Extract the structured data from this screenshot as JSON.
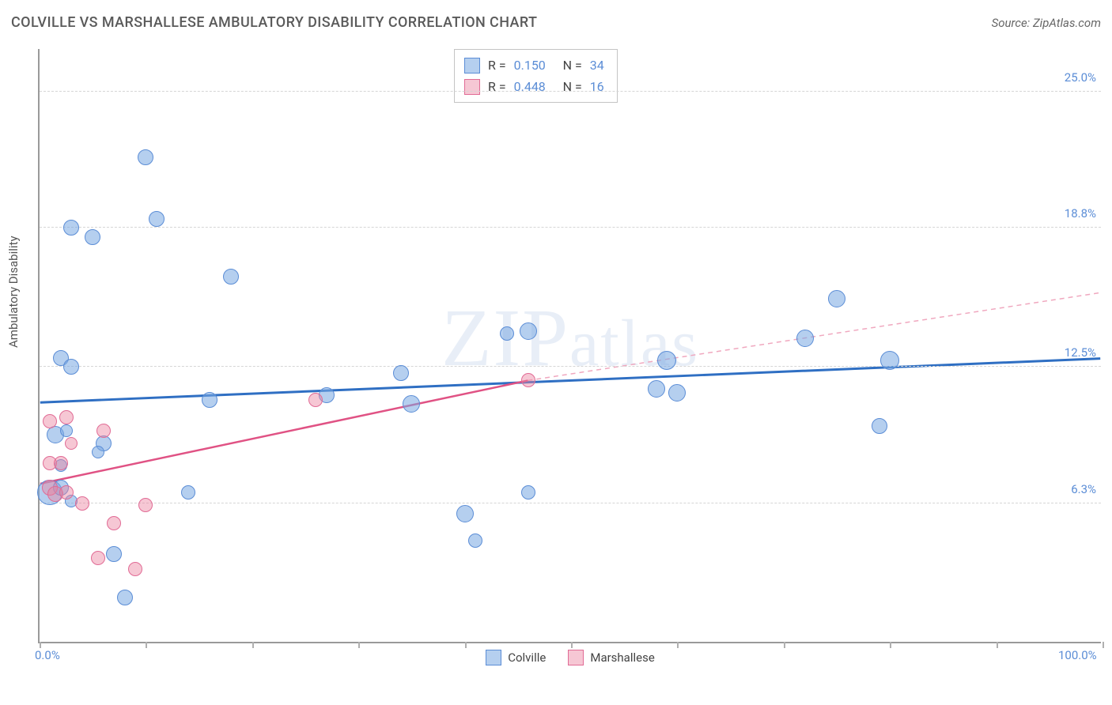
{
  "title": "COLVILLE VS MARSHALLESE AMBULATORY DISABILITY CORRELATION CHART",
  "source": "Source: ZipAtlas.com",
  "chart": {
    "type": "scatter",
    "ylabel": "Ambulatory Disability",
    "xlim": [
      0,
      100
    ],
    "ylim": [
      0,
      27
    ],
    "xticks": [
      0,
      10,
      20,
      30,
      40,
      50,
      60,
      70,
      80,
      90,
      100
    ],
    "xtick_labels": {
      "0": "0.0%",
      "100": "100.0%"
    },
    "yticks": [
      6.3,
      12.5,
      18.8,
      25.0
    ],
    "ytick_labels": [
      "6.3%",
      "12.5%",
      "18.8%",
      "25.0%"
    ],
    "background_color": "#ffffff",
    "grid_color": "#d5d5d5",
    "axis_color": "#9a9a9a",
    "watermark": "ZIPatlas",
    "series": [
      {
        "name": "Colville",
        "color_fill": "#79a8e1",
        "color_stroke": "#5b8dd6",
        "fill_opacity": 0.55,
        "marker": "circle",
        "R": "0.150",
        "N": "34",
        "trend": {
          "x1": 0,
          "y1": 10.9,
          "x2": 100,
          "y2": 12.9,
          "style": "solid",
          "color": "#2f6fc3",
          "width": 3
        },
        "points": [
          {
            "x": 3,
            "y": 18.8,
            "r": 10
          },
          {
            "x": 5,
            "y": 18.4,
            "r": 10
          },
          {
            "x": 11,
            "y": 19.2,
            "r": 10
          },
          {
            "x": 10,
            "y": 22.0,
            "r": 10
          },
          {
            "x": 18,
            "y": 16.6,
            "r": 10
          },
          {
            "x": 2,
            "y": 12.9,
            "r": 10
          },
          {
            "x": 3,
            "y": 12.5,
            "r": 10
          },
          {
            "x": 16,
            "y": 11.0,
            "r": 10
          },
          {
            "x": 6,
            "y": 9.0,
            "r": 10
          },
          {
            "x": 1.5,
            "y": 9.4,
            "r": 11
          },
          {
            "x": 2.5,
            "y": 9.6,
            "r": 8
          },
          {
            "x": 1,
            "y": 6.8,
            "r": 16
          },
          {
            "x": 2,
            "y": 7.0,
            "r": 10
          },
          {
            "x": 14,
            "y": 6.8,
            "r": 9
          },
          {
            "x": 7,
            "y": 4.0,
            "r": 10
          },
          {
            "x": 8,
            "y": 2.0,
            "r": 10
          },
          {
            "x": 34,
            "y": 12.2,
            "r": 10
          },
          {
            "x": 35,
            "y": 10.8,
            "r": 11
          },
          {
            "x": 40,
            "y": 5.8,
            "r": 11
          },
          {
            "x": 41,
            "y": 4.6,
            "r": 9
          },
          {
            "x": 44,
            "y": 14.0,
            "r": 9
          },
          {
            "x": 46,
            "y": 14.1,
            "r": 11
          },
          {
            "x": 46,
            "y": 6.8,
            "r": 9
          },
          {
            "x": 58,
            "y": 11.5,
            "r": 11
          },
          {
            "x": 60,
            "y": 11.3,
            "r": 11
          },
          {
            "x": 59,
            "y": 12.8,
            "r": 12
          },
          {
            "x": 72,
            "y": 13.8,
            "r": 11
          },
          {
            "x": 75,
            "y": 15.6,
            "r": 11
          },
          {
            "x": 80,
            "y": 12.8,
            "r": 12
          },
          {
            "x": 79,
            "y": 9.8,
            "r": 10
          },
          {
            "x": 27,
            "y": 11.2,
            "r": 10
          },
          {
            "x": 2,
            "y": 8.0,
            "r": 8
          },
          {
            "x": 3,
            "y": 6.4,
            "r": 8
          },
          {
            "x": 5.5,
            "y": 8.6,
            "r": 8
          }
        ]
      },
      {
        "name": "Marshallese",
        "color_fill": "#eb82a0",
        "color_stroke": "#e16b95",
        "fill_opacity": 0.45,
        "marker": "circle",
        "R": "0.448",
        "N": "16",
        "trend_solid": {
          "x1": 0,
          "y1": 7.2,
          "x2": 46,
          "y2": 11.9,
          "style": "solid",
          "color": "#e05284",
          "width": 2.5
        },
        "trend_dash": {
          "x1": 46,
          "y1": 11.9,
          "x2": 100,
          "y2": 15.9,
          "style": "dashed",
          "color": "#f0a8bf",
          "width": 1.5
        },
        "points": [
          {
            "x": 1,
            "y": 10.0,
            "r": 9
          },
          {
            "x": 2.5,
            "y": 10.2,
            "r": 9
          },
          {
            "x": 1,
            "y": 8.1,
            "r": 9
          },
          {
            "x": 2,
            "y": 8.1,
            "r": 9
          },
          {
            "x": 1,
            "y": 7.0,
            "r": 10
          },
          {
            "x": 1.5,
            "y": 6.7,
            "r": 10
          },
          {
            "x": 2.5,
            "y": 6.8,
            "r": 9
          },
          {
            "x": 6,
            "y": 9.6,
            "r": 9
          },
          {
            "x": 4,
            "y": 6.3,
            "r": 9
          },
          {
            "x": 10,
            "y": 6.2,
            "r": 9
          },
          {
            "x": 7,
            "y": 5.4,
            "r": 9
          },
          {
            "x": 5.5,
            "y": 3.8,
            "r": 9
          },
          {
            "x": 9,
            "y": 3.3,
            "r": 9
          },
          {
            "x": 26,
            "y": 11.0,
            "r": 9
          },
          {
            "x": 46,
            "y": 11.9,
            "r": 9
          },
          {
            "x": 3,
            "y": 9.0,
            "r": 8
          }
        ]
      }
    ],
    "legend_top": [
      {
        "swatch": "blue",
        "R_label": "R  =",
        "R": "0.150",
        "N_label": "N  =",
        "N": "34"
      },
      {
        "swatch": "pink",
        "R_label": "R  =",
        "R": "0.448",
        "N_label": "N  =",
        "N": "16"
      }
    ],
    "legend_bottom": [
      {
        "swatch": "blue",
        "label": "Colville"
      },
      {
        "swatch": "pink",
        "label": "Marshallese"
      }
    ]
  }
}
